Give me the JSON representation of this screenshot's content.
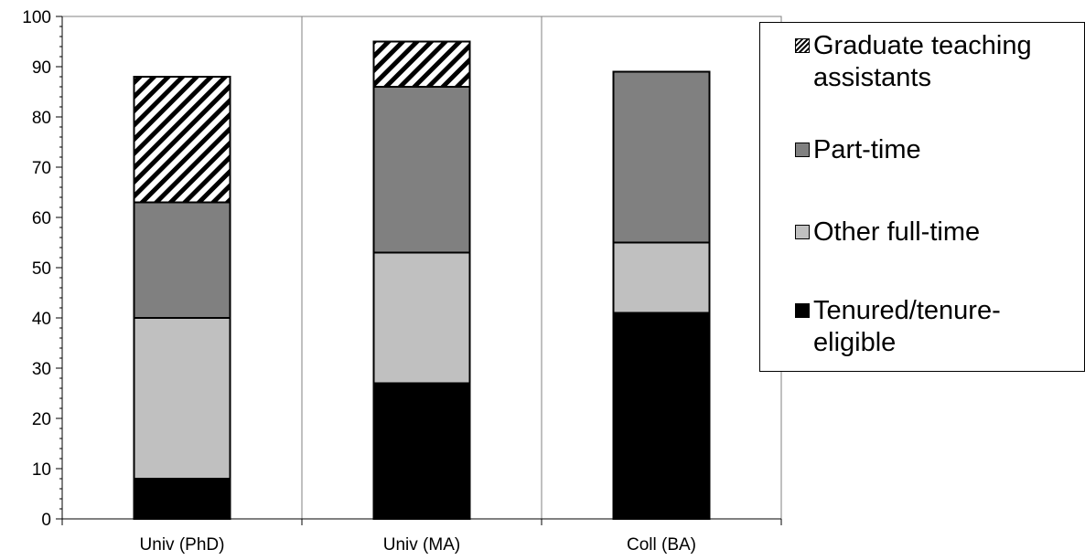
{
  "chart_data": {
    "type": "bar",
    "stacked": true,
    "categories": [
      "Univ (PhD)",
      "Univ (MA)",
      "Coll (BA)"
    ],
    "ylim": [
      0,
      100
    ],
    "yticks": [
      "0",
      "10",
      "20",
      "30",
      "40",
      "50",
      "60",
      "70",
      "80",
      "90",
      "100"
    ],
    "series": [
      {
        "name": "Tenured/tenure-eligible",
        "values": [
          8,
          27,
          41
        ],
        "color": "#000000",
        "pattern": "solid"
      },
      {
        "name": "Other full-time",
        "values": [
          32,
          26,
          14
        ],
        "color": "#c0c0c0",
        "pattern": "solid"
      },
      {
        "name": "Part-time",
        "values": [
          23,
          33,
          34
        ],
        "color": "#808080",
        "pattern": "solid"
      },
      {
        "name": "Graduate teaching assistants",
        "values": [
          25,
          9,
          0
        ],
        "color": "#000000",
        "pattern": "diagonal-hatch"
      }
    ],
    "legend_order": [
      "Graduate teaching assistants",
      "Part-time",
      "Other full-time",
      "Tenured/tenure-eligible"
    ],
    "legend_position": "right",
    "grid": false,
    "category_separators": true
  }
}
